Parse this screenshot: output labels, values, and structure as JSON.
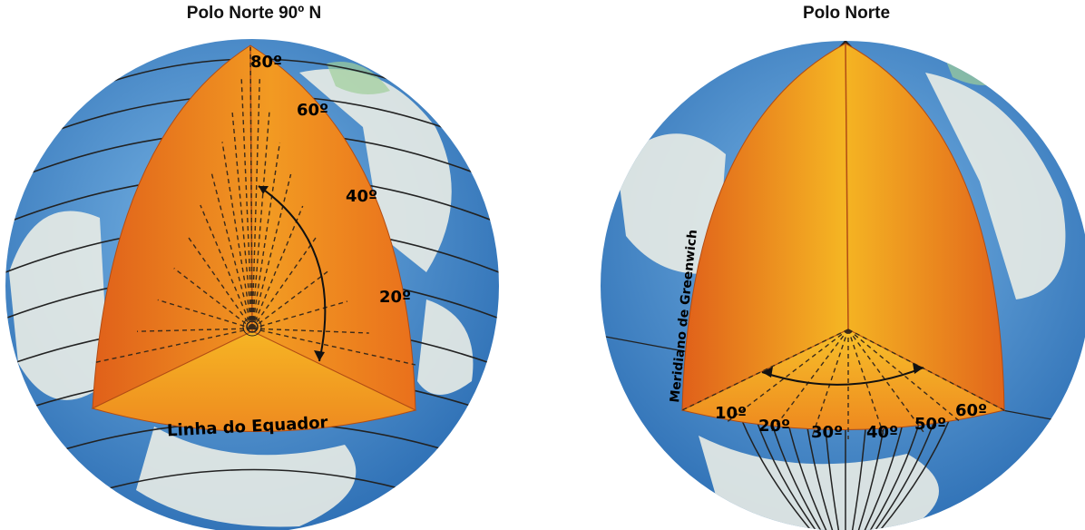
{
  "left_figure": {
    "title": "Polo Norte 90º N",
    "latitude_labels": [
      "80º",
      "60º",
      "40º",
      "20º"
    ],
    "equator_label": "Linha do Equador"
  },
  "right_figure": {
    "title": "Polo Norte",
    "meridian_label": "Meridiano de Greenwich",
    "longitude_labels": [
      "10º",
      "20º",
      "30º",
      "40º",
      "50º",
      "60º"
    ]
  },
  "colors": {
    "ocean": "#4a8fcf",
    "land": "#e9ece6",
    "wedge_dark": "#e46a1c",
    "wedge_light": "#f6b321"
  }
}
